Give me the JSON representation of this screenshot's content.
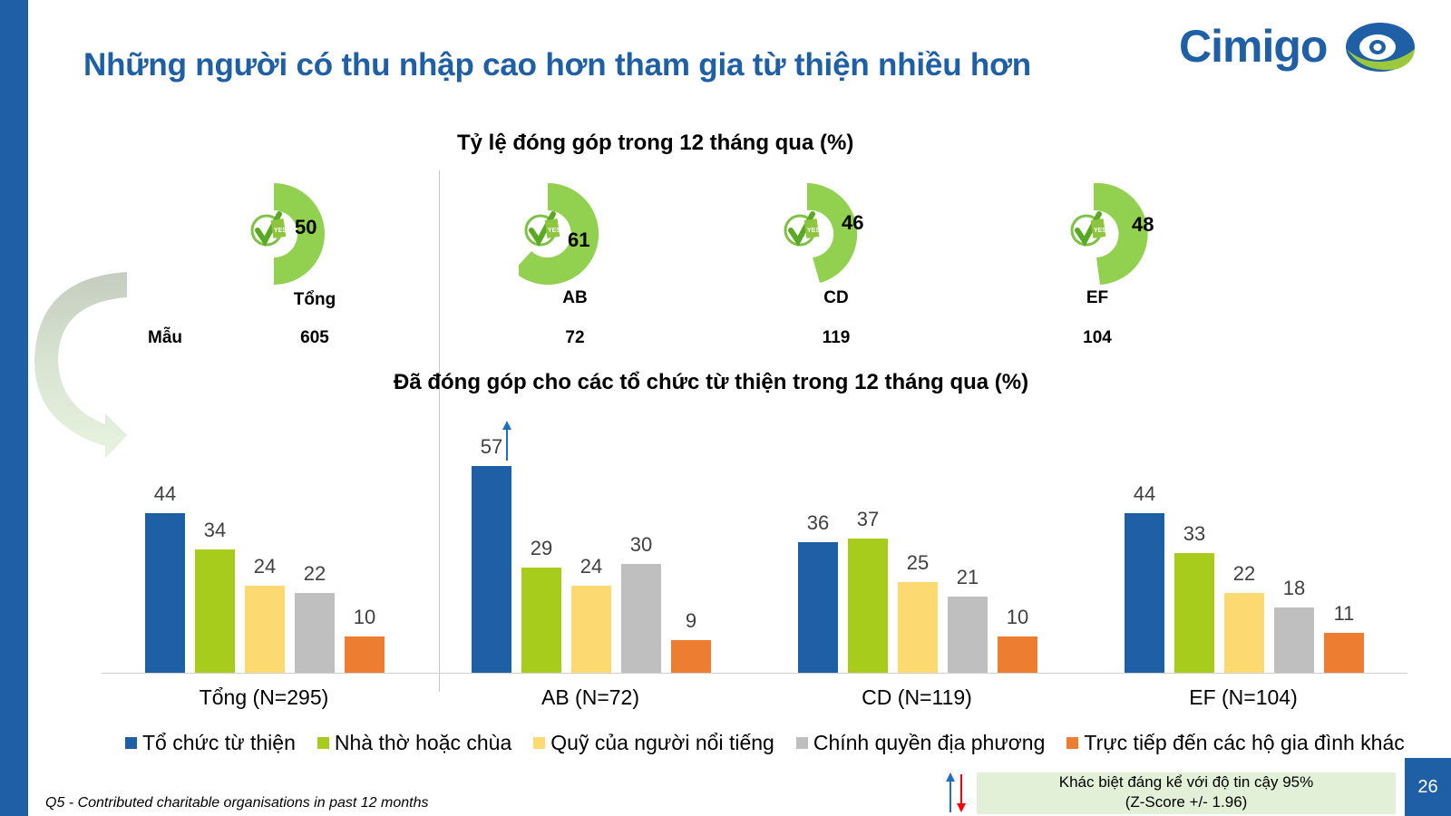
{
  "slide": {
    "title": "Những người có thu nhập cao hơn tham gia từ thiện nhiều hơn",
    "logo_text": "Cimigo",
    "page_number": "26",
    "footnote": "Q5 - Contributed charitable organisations in past 12 months",
    "significance_note_line1": "Khác biệt đáng kể với độ tin cậy 95%",
    "significance_note_line2": "(Z-Score +/- 1.96)",
    "sample_label": "Mẫu"
  },
  "colors": {
    "brand_blue": "#1f5fa6",
    "donut_green": "#92d050",
    "series": [
      "#1f5fa6",
      "#a7cc1b",
      "#fdd971",
      "#bfbfbf",
      "#ed7d31"
    ],
    "sig_up": "#1f6fc0",
    "sig_down": "#ff0000",
    "note_bg": "#e3f0d8"
  },
  "chart_data": [
    {
      "type": "pie",
      "title": "Tỷ lệ đóng góp trong 12 tháng qua (%)",
      "categories": [
        "Tổng",
        "AB",
        "CD",
        "EF"
      ],
      "values": [
        50,
        61,
        46,
        48
      ],
      "sample_sizes": [
        605,
        72,
        119,
        104
      ],
      "sample_label": "Mẫu",
      "style": "donut-partial"
    },
    {
      "type": "bar",
      "title": "Đã đóng góp cho các tổ chức từ thiện trong 12 tháng qua (%)",
      "categories": [
        "Tổng (N=295)",
        "AB (N=72)",
        "CD (N=119)",
        "EF (N=104)"
      ],
      "series": [
        {
          "name": "Tổ chức từ thiện",
          "values": [
            44,
            57,
            36,
            44
          ]
        },
        {
          "name": "Nhà thờ hoặc chùa",
          "values": [
            34,
            29,
            37,
            33
          ]
        },
        {
          "name": "Quỹ của người nổi tiếng",
          "values": [
            24,
            24,
            25,
            22
          ]
        },
        {
          "name": "Chính quyền địa phương",
          "values": [
            22,
            30,
            21,
            18
          ]
        },
        {
          "name": "Trực tiếp đến các hộ gia đình khác",
          "values": [
            10,
            9,
            10,
            11
          ]
        }
      ],
      "annotations": [
        {
          "category": "AB (N=72)",
          "series": "Tổ chức từ thiện",
          "marker": "significant-higher-arrow"
        }
      ],
      "xlabel": "",
      "ylabel": "",
      "ylim": [
        0,
        60
      ],
      "grid": false,
      "legend_position": "bottom"
    }
  ],
  "donuts": [
    {
      "label": "Tổng",
      "value": "50",
      "sample": "605"
    },
    {
      "label": "AB",
      "value": "61",
      "sample": "72"
    },
    {
      "label": "CD",
      "value": "46",
      "sample": "119"
    },
    {
      "label": "EF",
      "value": "48",
      "sample": "104"
    }
  ],
  "bars": {
    "categories": [
      "Tổng (N=295)",
      "AB (N=72)",
      "CD (N=119)",
      "EF (N=104)"
    ],
    "legend": [
      "Tổ chức từ thiện",
      "Nhà thờ hoặc chùa",
      "Quỹ của người nổi tiếng",
      "Chính quyền địa phương",
      "Trực tiếp đến các hộ gia đình khác"
    ],
    "values": [
      [
        44,
        34,
        24,
        22,
        10
      ],
      [
        57,
        29,
        24,
        30,
        9
      ],
      [
        36,
        37,
        25,
        21,
        10
      ],
      [
        44,
        33,
        22,
        18,
        11
      ]
    ]
  }
}
